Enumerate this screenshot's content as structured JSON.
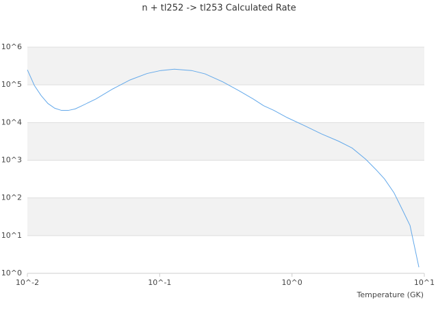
{
  "chart_data": {
    "type": "line",
    "title": "n + tl252 -> tl253 Calculated Rate",
    "x_label": "Temperature (GK)",
    "x": [
      0.01,
      0.0113,
      0.0127,
      0.0143,
      0.0161,
      0.0181,
      0.0204,
      0.023,
      0.0259,
      0.0329,
      0.0442,
      0.0597,
      0.0803,
      0.102,
      0.129,
      0.174,
      0.22,
      0.3,
      0.4,
      0.51,
      0.61,
      0.73,
      0.92,
      1.24,
      1.67,
      2.25,
      2.85,
      3.6,
      4.3,
      5.0,
      5.9,
      6.8,
      7.8,
      9.1
    ],
    "series": [
      {
        "color": "#62a8ea",
        "values": [
          250000,
          96000,
          52000,
          32000,
          24000,
          21000,
          21000,
          23000,
          28000,
          42000,
          78000,
          135000,
          200000,
          240000,
          260000,
          240000,
          196000,
          120000,
          69000,
          42000,
          28000,
          21000,
          13500,
          8300,
          5000,
          3200,
          2100,
          1070,
          570,
          320,
          137,
          50,
          18.5,
          1.45
        ]
      }
    ],
    "xscale": "log",
    "yscale": "log",
    "xlim": [
      0.01,
      10
    ],
    "ylim": [
      1,
      1000000
    ],
    "xticks": [
      {
        "value": 0.01,
        "label": "10^-2"
      },
      {
        "value": 0.1,
        "label": "10^-1"
      },
      {
        "value": 1,
        "label": "10^0"
      },
      {
        "value": 10,
        "label": "10^1"
      }
    ],
    "yticks": [
      {
        "value": 1,
        "label": "10^0"
      },
      {
        "value": 10,
        "label": "10^1"
      },
      {
        "value": 100,
        "label": "10^2"
      },
      {
        "value": 1000,
        "label": "10^3"
      },
      {
        "value": 10000,
        "label": "10^4"
      },
      {
        "value": 100000,
        "label": "10^5"
      },
      {
        "value": 1000000,
        "label": "10^6"
      }
    ],
    "grid": true
  }
}
